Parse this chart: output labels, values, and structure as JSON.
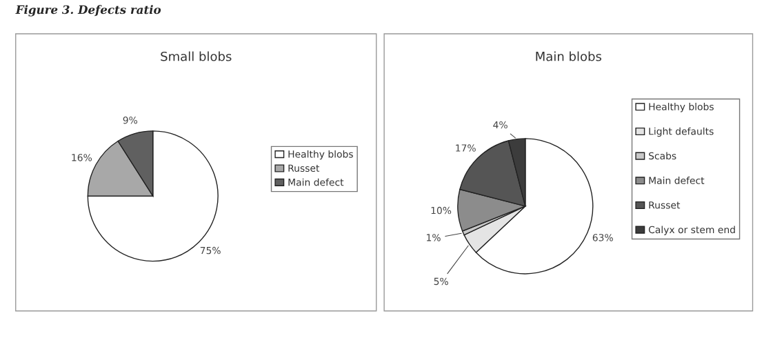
{
  "chart_data": [
    {
      "type": "pie",
      "title": "Small blobs",
      "annotations": [
        "Figure 3. Defects ratio"
      ],
      "categories": [
        "Healthy blobs",
        "Russet",
        "Main defect"
      ],
      "values": [
        75,
        16,
        9
      ],
      "value_labels": [
        "75%",
        "16%",
        "9%"
      ],
      "colors": [
        "#ffffff",
        "#a8a8a8",
        "#606060"
      ],
      "legend": "right"
    },
    {
      "type": "pie",
      "title": "Main blobs",
      "categories": [
        "Healthy blobs",
        "Light defaults",
        "Scabs",
        "Main defect",
        "Russet",
        "Calyx or stem end"
      ],
      "values": [
        63,
        5,
        1,
        10,
        17,
        4
      ],
      "value_labels": [
        "63%",
        "5%",
        "1%",
        "10%",
        "17%",
        "4%"
      ],
      "colors": [
        "#ffffff",
        "#e4e4e4",
        "#c8c8c8",
        "#8c8c8c",
        "#555555",
        "#3c3c3c"
      ],
      "legend": "right"
    }
  ]
}
